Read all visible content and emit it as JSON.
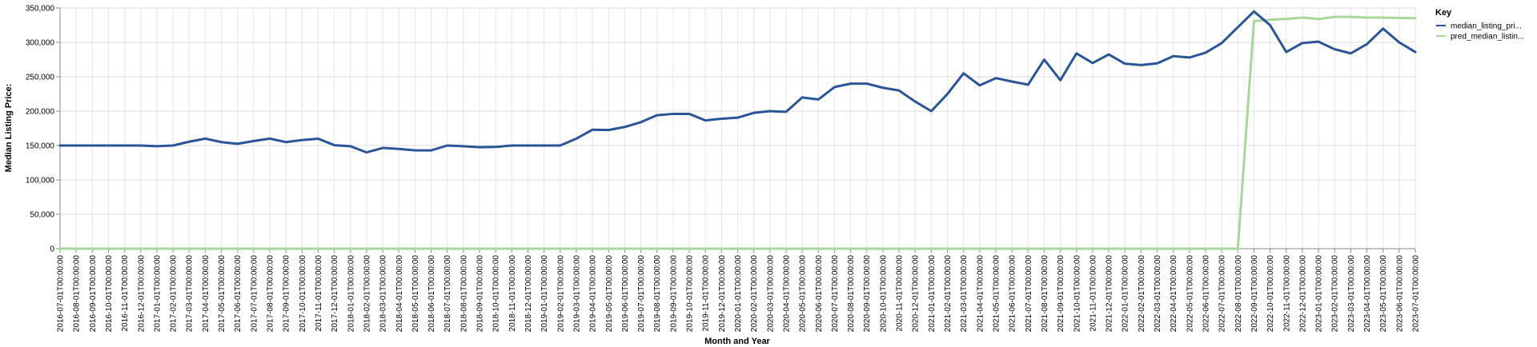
{
  "chart_data": {
    "type": "line",
    "xlabel": "Month and Year",
    "ylabel": "Median Listing Price:",
    "ylim": [
      0,
      350000
    ],
    "yticks": [
      "0",
      "50,000",
      "100,000",
      "150,000",
      "200,000",
      "250,000",
      "300,000",
      "350,000"
    ],
    "grid": true,
    "legend": {
      "title": "Key",
      "placement": "right"
    },
    "x": [
      "2016-07-01T00:00:00",
      "2016-08-01T00:00:00",
      "2016-09-01T00:00:00",
      "2016-10-01T00:00:00",
      "2016-11-01T00:00:00",
      "2016-12-01T00:00:00",
      "2017-01-01T00:00:00",
      "2017-02-01T00:00:00",
      "2017-03-01T00:00:00",
      "2017-04-01T00:00:00",
      "2017-05-01T00:00:00",
      "2017-06-01T00:00:00",
      "2017-07-01T00:00:00",
      "2017-08-01T00:00:00",
      "2017-09-01T00:00:00",
      "2017-10-01T00:00:00",
      "2017-11-01T00:00:00",
      "2017-12-01T00:00:00",
      "2018-01-01T00:00:00",
      "2018-02-01T00:00:00",
      "2018-03-01T00:00:00",
      "2018-04-01T00:00:00",
      "2018-05-01T00:00:00",
      "2018-06-01T00:00:00",
      "2018-07-01T00:00:00",
      "2018-08-01T00:00:00",
      "2018-09-01T00:00:00",
      "2018-10-01T00:00:00",
      "2018-11-01T00:00:00",
      "2018-12-01T00:00:00",
      "2019-01-01T00:00:00",
      "2019-02-01T00:00:00",
      "2019-03-01T00:00:00",
      "2019-04-01T00:00:00",
      "2019-05-01T00:00:00",
      "2019-06-01T00:00:00",
      "2019-07-01T00:00:00",
      "2019-08-01T00:00:00",
      "2019-09-01T00:00:00",
      "2019-10-01T00:00:00",
      "2019-11-01T00:00:00",
      "2019-12-01T00:00:00",
      "2020-01-01T00:00:00",
      "2020-02-01T00:00:00",
      "2020-03-01T00:00:00",
      "2020-04-01T00:00:00",
      "2020-05-01T00:00:00",
      "2020-06-01T00:00:00",
      "2020-07-01T00:00:00",
      "2020-08-01T00:00:00",
      "2020-09-01T00:00:00",
      "2020-10-01T00:00:00",
      "2020-11-01T00:00:00",
      "2020-12-01T00:00:00",
      "2021-01-01T00:00:00",
      "2021-02-01T00:00:00",
      "2021-03-01T00:00:00",
      "2021-04-01T00:00:00",
      "2021-05-01T00:00:00",
      "2021-06-01T00:00:00",
      "2021-07-01T00:00:00",
      "2021-08-01T00:00:00",
      "2021-09-01T00:00:00",
      "2021-10-01T00:00:00",
      "2021-11-01T00:00:00",
      "2021-12-01T00:00:00",
      "2022-01-01T00:00:00",
      "2022-02-01T00:00:00",
      "2022-03-01T00:00:00",
      "2022-04-01T00:00:00",
      "2022-05-01T00:00:00",
      "2022-06-01T00:00:00",
      "2022-07-01T00:00:00",
      "2022-08-01T00:00:00",
      "2022-09-01T00:00:00",
      "2022-10-01T00:00:00",
      "2022-11-01T00:00:00",
      "2022-12-01T00:00:00",
      "2023-01-01T00:00:00",
      "2023-02-01T00:00:00",
      "2023-03-01T00:00:00",
      "2023-04-01T00:00:00",
      "2023-05-01T00:00:00",
      "2023-06-01T00:00:00",
      "2023-07-01T00:00:00"
    ],
    "series": [
      {
        "name": "median_listing_pri...",
        "color": "#2a5597",
        "values": [
          150000,
          150000,
          150000,
          150000,
          150000,
          150000,
          149000,
          150000,
          155500,
          160000,
          155000,
          152500,
          156500,
          160000,
          155000,
          158000,
          159900,
          150500,
          149000,
          140000,
          146500,
          145000,
          143000,
          142900,
          150000,
          149000,
          147500,
          147900,
          150000,
          150000,
          150000,
          150000,
          160000,
          173000,
          172500,
          177000,
          184000,
          194000,
          196000,
          196000,
          186500,
          189000,
          190500,
          197500,
          200000,
          199000,
          219900,
          217000,
          235000,
          240000,
          240000,
          234000,
          230000,
          214000,
          200000,
          224900,
          255000,
          237500,
          248000,
          243000,
          238500,
          275000,
          245000,
          284000,
          270000,
          282500,
          269000,
          267000,
          269500,
          280000,
          278000,
          285000,
          299000,
          322000,
          345000,
          325000,
          286000,
          299000,
          301000,
          290000,
          284000,
          297500,
          320000,
          300000,
          286000
        ]
      },
      {
        "name": "pred_median_listin...",
        "color": "#a6d79b",
        "values": [
          0,
          0,
          0,
          0,
          0,
          0,
          0,
          0,
          0,
          0,
          0,
          0,
          0,
          0,
          0,
          0,
          0,
          0,
          0,
          0,
          0,
          0,
          0,
          0,
          0,
          0,
          0,
          0,
          0,
          0,
          0,
          0,
          0,
          0,
          0,
          0,
          0,
          0,
          0,
          0,
          0,
          0,
          0,
          0,
          0,
          0,
          0,
          0,
          0,
          0,
          0,
          0,
          0,
          0,
          0,
          0,
          0,
          0,
          0,
          0,
          0,
          0,
          0,
          0,
          0,
          0,
          0,
          0,
          0,
          0,
          0,
          0,
          0,
          0,
          331000,
          333000,
          334000,
          336000,
          334000,
          337000,
          337000,
          336000,
          336000,
          335500,
          335000
        ]
      }
    ]
  }
}
